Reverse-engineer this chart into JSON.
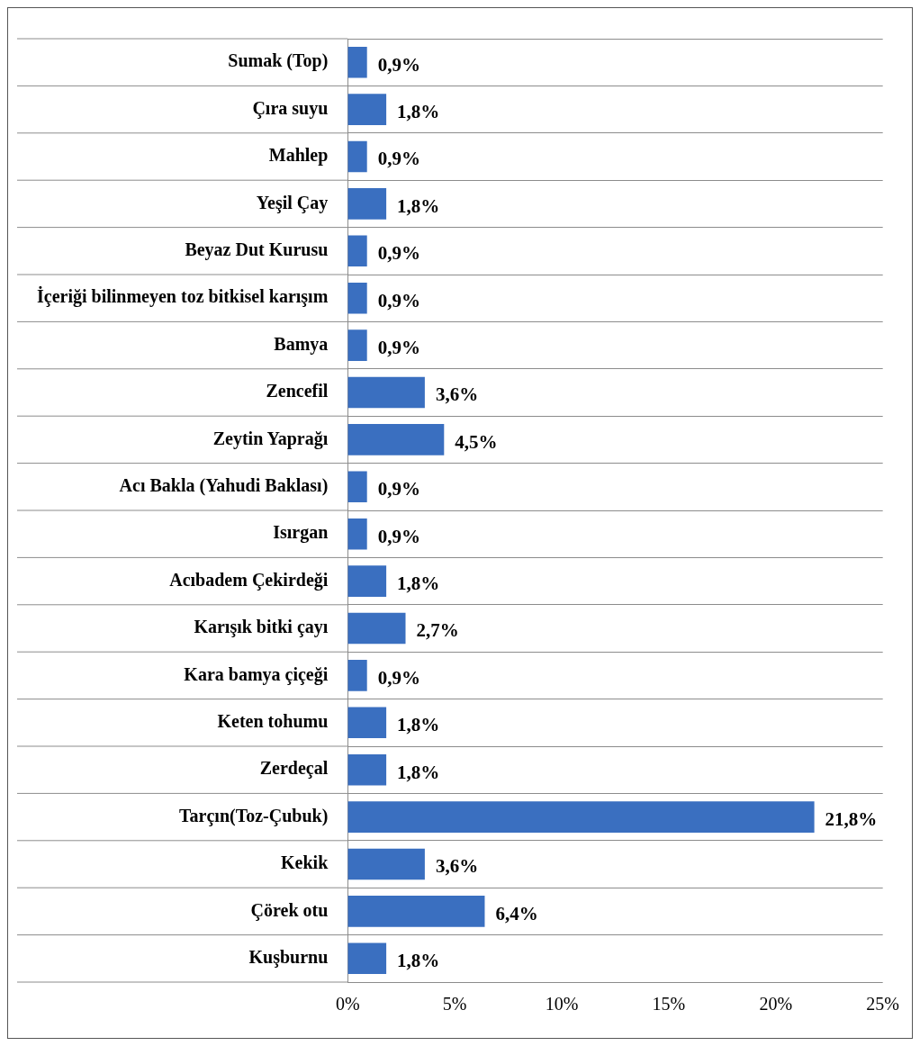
{
  "chart_data": {
    "type": "bar",
    "orientation": "horizontal",
    "categories": [
      "Sumak (Top)",
      "Çıra suyu",
      "Mahlep",
      "Yeşil Çay",
      "Beyaz Dut Kurusu",
      "İçeriği bilinmeyen toz bitkisel karışım",
      "Bamya",
      "Zencefil",
      "Zeytin Yaprağı",
      "Acı Bakla (Yahudi Baklası)",
      "Isırgan",
      "Acıbadem Çekirdeği",
      "Karışık bitki çayı",
      "Kara bamya çiçeği",
      "Keten tohumu",
      "Zerdeçal",
      "Tarçın(Toz-Çubuk)",
      "Kekik",
      "Çörek otu",
      "Kuşburnu"
    ],
    "values": [
      0.9,
      1.8,
      0.9,
      1.8,
      0.9,
      0.9,
      0.9,
      3.6,
      4.5,
      0.9,
      0.9,
      1.8,
      2.7,
      0.9,
      1.8,
      1.8,
      21.8,
      3.6,
      6.4,
      1.8
    ],
    "value_labels": [
      "0,9%",
      "1,8%",
      "0,9%",
      "1,8%",
      "0,9%",
      "0,9%",
      "0,9%",
      "3,6%",
      "4,5%",
      "0,9%",
      "0,9%",
      "1,8%",
      "2,7%",
      "0,9%",
      "1,8%",
      "1,8%",
      "21,8%",
      "3,6%",
      "6,4%",
      "1,8%"
    ],
    "color": "#3a6fc0",
    "xlim": [
      0,
      25
    ],
    "xticks": [
      {
        "value": 0,
        "label": "0%"
      },
      {
        "value": 5,
        "label": "5%"
      },
      {
        "value": 10,
        "label": "10%"
      },
      {
        "value": 15,
        "label": "15%"
      },
      {
        "value": 20,
        "label": "20%"
      },
      {
        "value": 25,
        "label": "25%"
      }
    ],
    "grid": "y",
    "legend": false
  }
}
